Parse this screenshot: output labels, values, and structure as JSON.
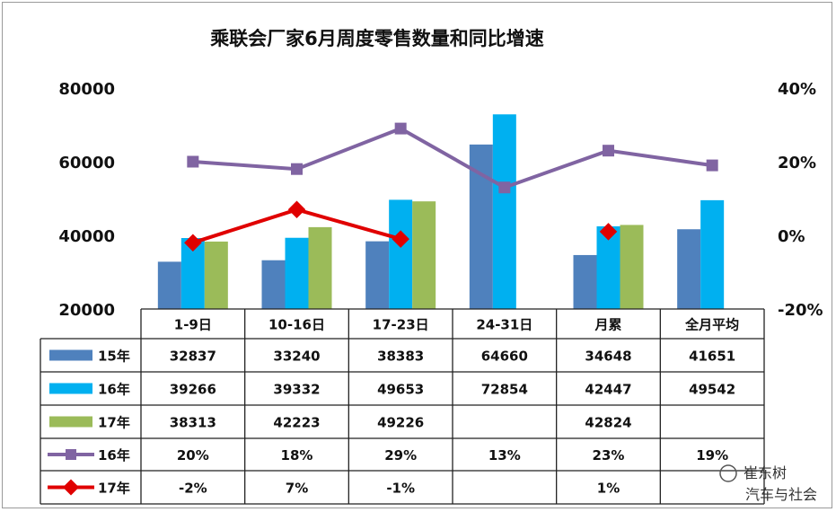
{
  "chart_data": {
    "type": "bar",
    "title": "乘联会厂家6月周度零售数量和同比增速",
    "categories": [
      "1-9日",
      "10-16日",
      "17-23日",
      "24-31日",
      "月累",
      "全月平均"
    ],
    "y_left": {
      "min": 20000,
      "max": 80000,
      "ticks": [
        "20000",
        "40000",
        "60000",
        "80000"
      ]
    },
    "y_right": {
      "min": -0.2,
      "max": 0.4,
      "ticks": [
        "-20%",
        "0%",
        "20%",
        "40%"
      ]
    },
    "bar_series": [
      {
        "name": "15年",
        "color": "#4f81bd",
        "values": [
          32837,
          33240,
          38383,
          64660,
          34648,
          41651
        ],
        "labels": [
          "32837",
          "33240",
          "38383",
          "64660",
          "34648",
          "41651"
        ]
      },
      {
        "name": "16年",
        "color": "#00b0f0",
        "values": [
          39266,
          39332,
          49653,
          72854,
          42447,
          49542
        ],
        "labels": [
          "39266",
          "39332",
          "49653",
          "72854",
          "42447",
          "49542"
        ]
      },
      {
        "name": "17年",
        "color": "#9bbb59",
        "values": [
          38313,
          42223,
          49226,
          null,
          42824,
          null
        ],
        "labels": [
          "38313",
          "42223",
          "49226",
          "",
          "42824",
          ""
        ]
      }
    ],
    "line_series": [
      {
        "name": "16年",
        "color": "#8064a2",
        "marker": "square",
        "values": [
          0.2,
          0.18,
          0.29,
          0.13,
          0.23,
          0.19
        ],
        "labels": [
          "20%",
          "18%",
          "29%",
          "13%",
          "23%",
          "19%"
        ]
      },
      {
        "name": "17年",
        "color": "#e00000",
        "marker": "diamond",
        "values": [
          -0.02,
          0.07,
          -0.01,
          null,
          0.01,
          null
        ],
        "labels": [
          "-2%",
          "7%",
          "-1%",
          "",
          "1%",
          ""
        ]
      }
    ]
  },
  "watermark": {
    "author": "崔东树",
    "sub": "汽车与社会"
  }
}
